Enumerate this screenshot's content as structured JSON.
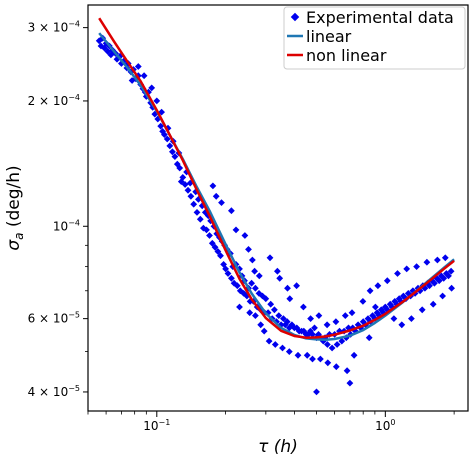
{
  "chart_data": {
    "type": "scatter",
    "x_scale": "log",
    "y_scale": "log",
    "xlim": [
      0.05,
      2.3
    ],
    "ylim": [
      3.6e-05,
      0.00034
    ],
    "xlabel": "τ (h)",
    "ylabel": "σ_a (deg/h)",
    "ylabel_main": "σ",
    "ylabel_sub": "a",
    "ylabel_rest": " (deg/h)",
    "x_ticks": [
      {
        "value": 0.1,
        "base": "10",
        "exp": "−1"
      },
      {
        "value": 1,
        "base": "10",
        "exp": "0"
      }
    ],
    "y_ticks": [
      {
        "value": 4e-05,
        "mant": "4 × 10",
        "exp": "−5"
      },
      {
        "value": 6e-05,
        "mant": "6 × 10",
        "exp": "−5"
      },
      {
        "value": 0.0001,
        "mant": "10",
        "exp": "−4"
      },
      {
        "value": 0.0002,
        "mant": "2 × 10",
        "exp": "−4"
      },
      {
        "value": 0.0003,
        "mant": "3 × 10",
        "exp": "−4"
      }
    ],
    "legend_position": "top-right",
    "series": [
      {
        "name": "Experimental data",
        "kind": "scatter",
        "color": "#0000ee",
        "points": [
          [
            0.056,
            0.000279
          ],
          [
            0.057,
            0.000271
          ],
          [
            0.058,
            0.000283
          ],
          [
            0.059,
            0.000268
          ],
          [
            0.06,
            0.000275
          ],
          [
            0.061,
            0.000263
          ],
          [
            0.062,
            0.000271
          ],
          [
            0.063,
            0.000258
          ],
          [
            0.064,
            0.000265
          ],
          [
            0.066,
            0.00026
          ],
          [
            0.067,
            0.000252
          ],
          [
            0.069,
            0.000256
          ],
          [
            0.07,
            0.000246
          ],
          [
            0.072,
            0.00025
          ],
          [
            0.074,
            0.00024
          ],
          [
            0.075,
            0.000246
          ],
          [
            0.077,
            0.000235
          ],
          [
            0.079,
            0.000238
          ],
          [
            0.081,
            0.000226
          ],
          [
            0.083,
            0.00023
          ],
          [
            0.085,
            0.000219
          ],
          [
            0.087,
            0.000214
          ],
          [
            0.089,
            0.00021
          ],
          [
            0.09,
            0.000205
          ],
          [
            0.092,
            0.00021
          ],
          [
            0.094,
            0.000198
          ],
          [
            0.096,
            0.000193
          ],
          [
            0.098,
            0.000186
          ],
          [
            0.101,
            0.000181
          ],
          [
            0.104,
            0.000174
          ],
          [
            0.106,
            0.000169
          ],
          [
            0.108,
            0.000166
          ],
          [
            0.111,
            0.000162
          ],
          [
            0.114,
            0.000156
          ],
          [
            0.117,
            0.000151
          ],
          [
            0.12,
            0.000147
          ],
          [
            0.123,
            0.000141
          ],
          [
            0.126,
            0.000138
          ],
          [
            0.13,
            0.000131
          ],
          [
            0.133,
            0.000126
          ],
          [
            0.137,
            0.000122
          ],
          [
            0.141,
            0.000118
          ],
          [
            0.145,
            0.000113
          ],
          [
            0.15,
            0.000108
          ],
          [
            0.155,
            0.000104
          ],
          [
            0.16,
            9.9e-05
          ],
          [
            0.165,
            9.8e-05
          ],
          [
            0.17,
            9.5e-05
          ],
          [
            0.175,
            9.1e-05
          ],
          [
            0.18,
            8.9e-05
          ],
          [
            0.185,
            8.7e-05
          ],
          [
            0.19,
            8.5e-05
          ],
          [
            0.196,
            8.1e-05
          ],
          [
            0.2,
            7.9e-05
          ],
          [
            0.205,
            7.7e-05
          ],
          [
            0.212,
            7.5e-05
          ],
          [
            0.218,
            7.3e-05
          ],
          [
            0.225,
            7.2e-05
          ],
          [
            0.232,
            7e-05
          ],
          [
            0.24,
            6.9e-05
          ],
          [
            0.248,
            6.8e-05
          ],
          [
            0.256,
            6.6e-05
          ],
          [
            0.265,
            6.6e-05
          ],
          [
            0.275,
            6.4e-05
          ],
          [
            0.285,
            6.3e-05
          ],
          [
            0.296,
            6.2e-05
          ],
          [
            0.307,
            6.2e-05
          ],
          [
            0.32,
            6e-05
          ],
          [
            0.334,
            5.9e-05
          ],
          [
            0.35,
            5.8e-05
          ],
          [
            0.365,
            5.8e-05
          ],
          [
            0.38,
            5.7e-05
          ],
          [
            0.4,
            5.7e-05
          ],
          [
            0.42,
            5.6e-05
          ],
          [
            0.44,
            5.6e-05
          ],
          [
            0.46,
            5.5e-05
          ],
          [
            0.48,
            5.5e-05
          ],
          [
            0.5,
            5.4e-05
          ],
          [
            0.52,
            5.4e-05
          ],
          [
            0.545,
            5.4e-05
          ],
          [
            0.57,
            5.5e-05
          ],
          [
            0.6,
            5.5e-05
          ],
          [
            0.63,
            5.6e-05
          ],
          [
            0.66,
            5.6e-05
          ],
          [
            0.69,
            5.7e-05
          ],
          [
            0.72,
            5.7e-05
          ],
          [
            0.76,
            5.8e-05
          ],
          [
            0.8,
            5.9e-05
          ],
          [
            0.84,
            6e-05
          ],
          [
            0.88,
            6.1e-05
          ],
          [
            0.92,
            6.2e-05
          ],
          [
            0.96,
            6.3e-05
          ],
          [
            1.0,
            6.4e-05
          ],
          [
            1.05,
            6.5e-05
          ],
          [
            1.1,
            6.6e-05
          ],
          [
            1.15,
            6.7e-05
          ],
          [
            1.2,
            6.8e-05
          ],
          [
            1.26,
            6.9e-05
          ],
          [
            1.32,
            7e-05
          ],
          [
            1.39,
            7.1e-05
          ],
          [
            1.46,
            7.2e-05
          ],
          [
            1.53,
            7.3e-05
          ],
          [
            1.6,
            7.4e-05
          ],
          [
            1.68,
            7.5e-05
          ],
          [
            1.76,
            7.6e-05
          ],
          [
            1.85,
            7.7e-05
          ],
          [
            1.94,
            7.8e-05
          ],
          [
            0.078,
            0.000224
          ],
          [
            0.083,
            0.000242
          ],
          [
            0.088,
            0.00023
          ],
          [
            0.095,
            0.000215
          ],
          [
            0.1,
            0.0002
          ],
          [
            0.105,
            0.000188
          ],
          [
            0.112,
            0.000172
          ],
          [
            0.118,
            0.00016
          ],
          [
            0.125,
            0.00015
          ],
          [
            0.128,
            0.000128
          ],
          [
            0.135,
            0.000135
          ],
          [
            0.14,
            0.000127
          ],
          [
            0.148,
            0.000121
          ],
          [
            0.152,
            0.000116
          ],
          [
            0.158,
            0.000112
          ],
          [
            0.163,
            0.000108
          ],
          [
            0.168,
            0.000106
          ],
          [
            0.172,
            0.000103
          ],
          [
            0.178,
            0.0001
          ],
          [
            0.183,
            9.6e-05
          ],
          [
            0.188,
            9.4e-05
          ],
          [
            0.193,
            9.2e-05
          ],
          [
            0.198,
            9e-05
          ],
          [
            0.203,
            8.8e-05
          ],
          [
            0.21,
            8.6e-05
          ],
          [
            0.215,
            8e-05
          ],
          [
            0.222,
            8.1e-05
          ],
          [
            0.23,
            7.9e-05
          ],
          [
            0.236,
            7.6e-05
          ],
          [
            0.242,
            7.4e-05
          ],
          [
            0.252,
            7.1e-05
          ],
          [
            0.26,
            7.3e-05
          ],
          [
            0.27,
            7.1e-05
          ],
          [
            0.28,
            6.9e-05
          ],
          [
            0.29,
            6.8e-05
          ],
          [
            0.3,
            6.7e-05
          ],
          [
            0.315,
            6.5e-05
          ],
          [
            0.327,
            6.3e-05
          ],
          [
            0.342,
            6.1e-05
          ],
          [
            0.358,
            6e-05
          ],
          [
            0.372,
            5.9e-05
          ],
          [
            0.39,
            5.8e-05
          ],
          [
            0.41,
            5.7e-05
          ],
          [
            0.43,
            5.6e-05
          ],
          [
            0.45,
            5.5e-05
          ],
          [
            0.47,
            5.6e-05
          ],
          [
            0.49,
            5.7e-05
          ],
          [
            0.51,
            5.5e-05
          ],
          [
            0.535,
            5.3e-05
          ],
          [
            0.558,
            5.2e-05
          ],
          [
            0.585,
            5.1e-05
          ],
          [
            0.615,
            5.2e-05
          ],
          [
            0.645,
            5.3e-05
          ],
          [
            0.675,
            5.4e-05
          ],
          [
            0.705,
            5.5e-05
          ],
          [
            0.74,
            5.6e-05
          ],
          [
            0.78,
            5.7e-05
          ],
          [
            0.82,
            5.8e-05
          ],
          [
            0.86,
            5.9e-05
          ],
          [
            0.9,
            6e-05
          ],
          [
            0.94,
            6.1e-05
          ],
          [
            0.98,
            6.2e-05
          ],
          [
            1.02,
            6.3e-05
          ],
          [
            1.07,
            6.4e-05
          ],
          [
            1.12,
            6.5e-05
          ],
          [
            1.17,
            6.6e-05
          ],
          [
            1.23,
            6.7e-05
          ],
          [
            1.29,
            6.8e-05
          ],
          [
            1.35,
            6.9e-05
          ],
          [
            1.42,
            7e-05
          ],
          [
            1.49,
            7.1e-05
          ],
          [
            1.56,
            7.2e-05
          ],
          [
            1.64,
            7.3e-05
          ],
          [
            1.72,
            7.4e-05
          ],
          [
            1.8,
            7.5e-05
          ],
          [
            1.89,
            7.6e-05
          ],
          [
            0.176,
            0.000125
          ],
          [
            0.182,
            0.000118
          ],
          [
            0.192,
            0.000114
          ],
          [
            0.212,
            0.000109
          ],
          [
            0.222,
            9.8e-05
          ],
          [
            0.243,
            9.5e-05
          ],
          [
            0.252,
            8.8e-05
          ],
          [
            0.262,
            8.3e-05
          ],
          [
            0.268,
            7.8e-05
          ],
          [
            0.281,
            7.6e-05
          ],
          [
            0.313,
            8.4e-05
          ],
          [
            0.337,
            7.8e-05
          ],
          [
            0.345,
            7.5e-05
          ],
          [
            0.373,
            7.1e-05
          ],
          [
            0.382,
            6.7e-05
          ],
          [
            0.409,
            7.2e-05
          ],
          [
            0.438,
            6.4e-05
          ],
          [
            0.471,
            6e-05
          ],
          [
            0.512,
            6.1e-05
          ],
          [
            0.556,
            5.8e-05
          ],
          [
            0.608,
            5.9e-05
          ],
          [
            0.668,
            6.1e-05
          ],
          [
            0.715,
            6.2e-05
          ],
          [
            0.798,
            6.6e-05
          ],
          [
            0.858,
            7e-05
          ],
          [
            0.928,
            7.2e-05
          ],
          [
            1.02,
            7.4e-05
          ],
          [
            1.13,
            7.7e-05
          ],
          [
            1.24,
            7.9e-05
          ],
          [
            1.37,
            8e-05
          ],
          [
            1.52,
            8.2e-05
          ],
          [
            1.69,
            8.3e-05
          ],
          [
            1.83,
            8.4e-05
          ],
          [
            0.23,
            6.4e-05
          ],
          [
            0.255,
            6.2e-05
          ],
          [
            0.27,
            6.1e-05
          ],
          [
            0.285,
            5.8e-05
          ],
          [
            0.295,
            5.6e-05
          ],
          [
            0.31,
            5.3e-05
          ],
          [
            0.33,
            5.2e-05
          ],
          [
            0.355,
            5.1e-05
          ],
          [
            0.38,
            5e-05
          ],
          [
            0.415,
            4.9e-05
          ],
          [
            0.455,
            4.9e-05
          ],
          [
            0.48,
            4.8e-05
          ],
          [
            0.52,
            4.8e-05
          ],
          [
            0.56,
            4.7e-05
          ],
          [
            0.61,
            4.6e-05
          ],
          [
            0.68,
            4.5e-05
          ],
          [
            0.73,
            4.9e-05
          ],
          [
            0.85,
            5.4e-05
          ],
          [
            0.5,
            4e-05
          ],
          [
            0.7,
            4.2e-05
          ],
          [
            1.18,
            5.8e-05
          ],
          [
            1.3,
            6e-05
          ],
          [
            1.45,
            6.3e-05
          ],
          [
            1.62,
            6.5e-05
          ],
          [
            1.78,
            6.8e-05
          ],
          [
            1.95,
            7.1e-05
          ],
          [
            0.905,
            6.4e-05
          ],
          [
            1.09,
            6e-05
          ]
        ]
      },
      {
        "name": "linear",
        "kind": "line",
        "color": "#1f77b4",
        "x": [
          0.056,
          0.065,
          0.075,
          0.085,
          0.1,
          0.115,
          0.13,
          0.15,
          0.17,
          0.2,
          0.23,
          0.26,
          0.3,
          0.35,
          0.4,
          0.45,
          0.5,
          0.55,
          0.6,
          0.7,
          0.8,
          0.9,
          1.0,
          1.2,
          1.4,
          1.6,
          1.8,
          2.0
        ],
        "y": [
          0.000291,
          0.000263,
          0.000239,
          0.000218,
          0.000189,
          0.000164,
          0.000145,
          0.000124,
          0.000109,
          9.05e-05,
          7.75e-05,
          6.9e-05,
          6.18e-05,
          5.7e-05,
          5.48e-05,
          5.38e-05,
          5.35e-05,
          5.34e-05,
          5.36e-05,
          5.46e-05,
          5.63e-05,
          5.86e-05,
          6.1e-05,
          6.59e-05,
          7.07e-05,
          7.52e-05,
          7.94e-05,
          8.33e-05
        ]
      },
      {
        "name": "non linear",
        "kind": "line",
        "color": "#dd0000",
        "x": [
          0.056,
          0.065,
          0.075,
          0.085,
          0.1,
          0.115,
          0.13,
          0.15,
          0.17,
          0.2,
          0.23,
          0.26,
          0.3,
          0.35,
          0.4,
          0.45,
          0.5,
          0.55,
          0.6,
          0.7,
          0.8,
          0.9,
          1.0,
          1.2,
          1.4,
          1.6,
          1.8,
          2.0
        ],
        "y": [
          0.000316,
          0.000278,
          0.000247,
          0.000223,
          0.00019,
          0.000164,
          0.000144,
          0.000122,
          0.000106,
          8.75e-05,
          7.48e-05,
          6.68e-05,
          6.02e-05,
          5.61e-05,
          5.45e-05,
          5.4e-05,
          5.41e-05,
          5.44e-05,
          5.49e-05,
          5.62e-05,
          5.77e-05,
          5.96e-05,
          6.16e-05,
          6.6e-05,
          7.05e-05,
          7.48e-05,
          7.89e-05,
          8.26e-05
        ]
      }
    ]
  }
}
